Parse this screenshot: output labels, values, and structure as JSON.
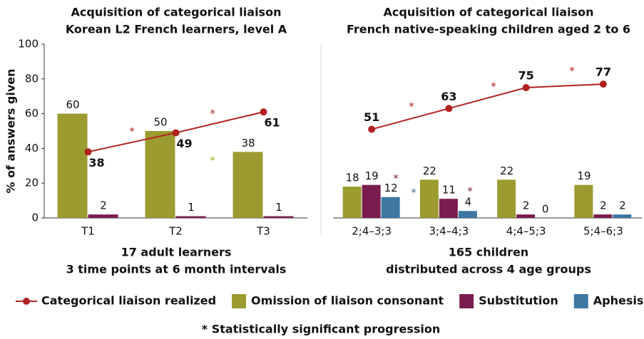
{
  "chart_data": [
    {
      "type": "bar",
      "title": "Acquisition of categorical liaison",
      "subtitle": "Korean L2 French learners, level A",
      "ylabel": "% of answers given",
      "categories": [
        "T1",
        "T2",
        "T3"
      ],
      "xlabel": "17 adult learners",
      "xlabel2": "3 time points at 6 month intervals",
      "ylim": [
        0,
        100
      ],
      "yticks": [
        0,
        20,
        40,
        60,
        80,
        100
      ],
      "series": [
        {
          "type": "line",
          "color": "#b22222",
          "values": [
            38,
            49,
            61
          ]
        },
        {
          "type": "bar",
          "color": "#9b9b2f",
          "values": [
            60,
            50,
            38
          ]
        },
        {
          "type": "bar",
          "color": "#7a1d4e",
          "values": [
            2,
            1,
            1
          ]
        }
      ],
      "annotations": [
        {
          "text": "*",
          "color": "#b22222"
        },
        {
          "text": "*",
          "color": "#b22222"
        },
        {
          "text": "*",
          "color": "#a4b030"
        }
      ]
    },
    {
      "type": "bar",
      "title": "Acquisition of categorical liaison",
      "subtitle": "French native-speaking children aged 2 to 6",
      "categories": [
        "2;4–3;3",
        "3;4–4;3",
        "4;4–5;3",
        "5;4–6;3"
      ],
      "xlabel": "165 children",
      "xlabel2": "distributed across 4 age groups",
      "ylim": [
        0,
        100
      ],
      "series": [
        {
          "type": "line",
          "name": "Categorical liaison realized",
          "color": "#b22222",
          "values": [
            51,
            63,
            75,
            77
          ]
        },
        {
          "type": "bar",
          "name": "Omission of liaison consonant",
          "color": "#9b9b2f",
          "values": [
            18,
            22,
            22,
            19
          ]
        },
        {
          "type": "bar",
          "name": "Substitution",
          "color": "#7a1d4e",
          "values": [
            19,
            11,
            2,
            2
          ]
        },
        {
          "type": "bar",
          "name": "Aphesis",
          "color": "#3d78a3",
          "values": [
            12,
            4,
            0,
            2
          ]
        }
      ],
      "annotations": [
        {
          "text": "*",
          "color": "#b22222"
        },
        {
          "text": "*",
          "color": "#b22222"
        },
        {
          "text": "*",
          "color": "#b22222"
        },
        {
          "text": "*",
          "color": "#7a1d4e"
        },
        {
          "text": "*",
          "color": "#3d78a3"
        },
        {
          "text": "*",
          "color": "#7a1d4e"
        }
      ]
    }
  ],
  "footnote": "* Statistically significant progression"
}
